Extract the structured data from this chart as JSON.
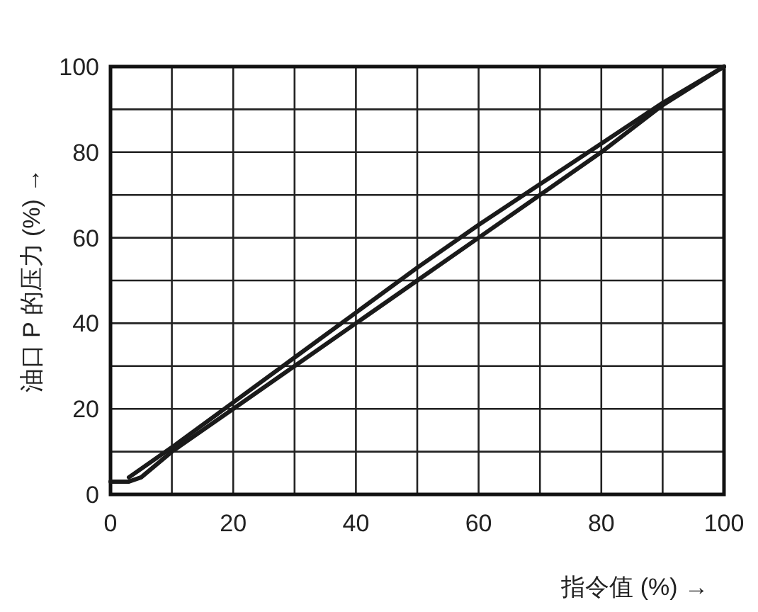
{
  "chart_data": {
    "type": "line",
    "xlabel": "指令值 (%) →",
    "ylabel": "油口 P 的压力 (%) →",
    "series": [
      {
        "color": "#1a1a1a",
        "x": [
          0,
          3,
          5,
          10,
          20,
          30,
          40,
          50,
          60,
          70,
          80,
          90,
          100
        ],
        "values": [
          3,
          3,
          4,
          10,
          20,
          30,
          40,
          50,
          60,
          70,
          80,
          91,
          100
        ]
      },
      {
        "color": "#1a1a1a",
        "x": [
          3,
          10,
          20,
          30,
          40,
          50,
          60,
          70,
          80,
          90,
          100
        ],
        "values": [
          4,
          11,
          21.5,
          32,
          42.5,
          53,
          63,
          72.5,
          82,
          91.5,
          100
        ]
      }
    ],
    "xlim": [
      0,
      100
    ],
    "ylim": [
      0,
      100
    ],
    "xticks": [
      0,
      {
        "value": 10,
        "label": null
      },
      20,
      {
        "value": 30,
        "label": null
      },
      40,
      {
        "value": 50,
        "label": null
      },
      60,
      {
        "value": 70,
        "label": null
      },
      80,
      {
        "value": 90,
        "label": null
      },
      100
    ],
    "yticks": [
      0,
      {
        "value": 10,
        "label": null
      },
      20,
      {
        "value": 30,
        "label": null
      },
      40,
      {
        "value": 50,
        "label": null
      },
      60,
      {
        "value": 70,
        "label": null
      },
      80,
      {
        "value": 90,
        "label": null
      },
      100
    ],
    "grid": true,
    "marker": "none",
    "line_style": "solid"
  }
}
